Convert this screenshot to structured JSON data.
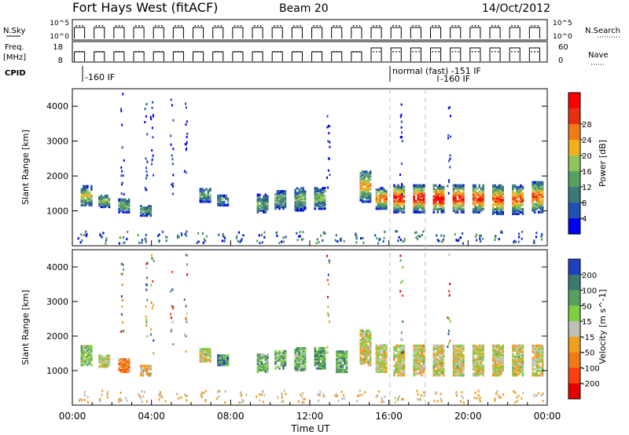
{
  "header": {
    "title": "Fort Hays West (fitACF)",
    "beam": "Beam 20",
    "date": "14/Oct/2012"
  },
  "top_panels": {
    "nsky_label": "N.Sky",
    "nsky_ticks": [
      "10^5",
      "10^0"
    ],
    "nsearch_label": "N.Search",
    "freq_label_1": "Freq.",
    "freq_label_2": "[MHz]",
    "freq_ticks": [
      "18",
      "8"
    ],
    "nave_ticks": [
      "60",
      "0"
    ],
    "nave_label": "Nave",
    "cpid_label": "CPID",
    "cpid_annotations": [
      "-160 IF",
      "normal (fast) -151 IF",
      "-160 IF"
    ]
  },
  "chart_data": [
    {
      "type": "heatmap",
      "name": "power",
      "ylabel": "Slant Range [km]",
      "xlabel": "Time UT",
      "x_ticks": [
        "00:00",
        "04:00",
        "08:00",
        "12:00",
        "16:00",
        "20:00",
        "00:00"
      ],
      "y_ticks": [
        1000,
        2000,
        3000,
        4000
      ],
      "ylim": [
        0,
        4500
      ],
      "xlim_hours": [
        0,
        24
      ],
      "colorbar_label": "Power [dB]",
      "colorbar_ticks": [
        4,
        8,
        12,
        16,
        20,
        24,
        28
      ],
      "colors": [
        "#0000f0",
        "#2050b0",
        "#3c7a7a",
        "#58a060",
        "#8ec45a",
        "#f0b020",
        "#f07a18",
        "#e83010",
        "#ff0000"
      ],
      "echo_bursts": [
        {
          "t": 0.7,
          "r0": 1200,
          "r1": 1750,
          "peak": 0.5
        },
        {
          "t": 1.6,
          "r0": 1150,
          "r1": 1500,
          "peak": 0.4
        },
        {
          "t": 2.6,
          "r0": 1000,
          "r1": 1400,
          "peak": 0.35
        },
        {
          "t": 3.7,
          "r0": 900,
          "r1": 1200,
          "peak": 0.3
        },
        {
          "t": 6.7,
          "r0": 1300,
          "r1": 1700,
          "peak": 0.3
        },
        {
          "t": 7.6,
          "r0": 1200,
          "r1": 1500,
          "peak": 0.25
        },
        {
          "t": 9.6,
          "r0": 1000,
          "r1": 1500,
          "peak": 0.3
        },
        {
          "t": 10.5,
          "r0": 1100,
          "r1": 1600,
          "peak": 0.3
        },
        {
          "t": 11.5,
          "r0": 1050,
          "r1": 1700,
          "peak": 0.35
        },
        {
          "t": 12.5,
          "r0": 1100,
          "r1": 1700,
          "peak": 0.35
        },
        {
          "t": 14.8,
          "r0": 1300,
          "r1": 2200,
          "peak": 0.6
        },
        {
          "t": 15.6,
          "r0": 1100,
          "r1": 1700,
          "peak": 0.7
        },
        {
          "t": 16.5,
          "r0": 1000,
          "r1": 1800,
          "peak": 0.8
        },
        {
          "t": 17.5,
          "r0": 1000,
          "r1": 1800,
          "peak": 0.85
        },
        {
          "t": 18.5,
          "r0": 1000,
          "r1": 1800,
          "peak": 0.9
        },
        {
          "t": 19.5,
          "r0": 1000,
          "r1": 1800,
          "peak": 0.85
        },
        {
          "t": 20.5,
          "r0": 1000,
          "r1": 1800,
          "peak": 0.8
        },
        {
          "t": 21.5,
          "r0": 950,
          "r1": 1800,
          "peak": 0.75
        },
        {
          "t": 22.5,
          "r0": 950,
          "r1": 1800,
          "peak": 0.7
        },
        {
          "t": 23.5,
          "r0": 1000,
          "r1": 1900,
          "peak": 0.7
        }
      ]
    },
    {
      "type": "heatmap",
      "name": "velocity",
      "ylabel": "Slant Range [km]",
      "xlabel": "Time UT",
      "x_ticks": [
        "00:00",
        "04:00",
        "08:00",
        "12:00",
        "16:00",
        "20:00",
        "00:00"
      ],
      "y_ticks": [
        1000,
        2000,
        3000,
        4000
      ],
      "ylim": [
        0,
        4500
      ],
      "xlim_hours": [
        0,
        24
      ],
      "colorbar_label": "Velocity [m s^-1]",
      "colorbar_ticks": [
        200,
        100,
        50,
        15,
        -15,
        -50,
        -100,
        -200
      ],
      "colors": [
        "#2040c0",
        "#3a7a70",
        "#58a060",
        "#7cd040",
        "#c0c0b8",
        "#f0a020",
        "#f07a18",
        "#ff4010",
        "#e80000"
      ],
      "echo_bursts": [
        {
          "t": 0.7,
          "r0": 1200,
          "r1": 1750,
          "v": 0.4
        },
        {
          "t": 1.6,
          "r0": 1150,
          "r1": 1500,
          "v": 0.5
        },
        {
          "t": 2.6,
          "r0": 1000,
          "r1": 1400,
          "v": 0.7
        },
        {
          "t": 3.7,
          "r0": 900,
          "r1": 1200,
          "v": 0.6
        },
        {
          "t": 6.7,
          "r0": 1300,
          "r1": 1700,
          "v": 0.5
        },
        {
          "t": 7.6,
          "r0": 1200,
          "r1": 1500,
          "v": 0.2
        },
        {
          "t": 9.6,
          "r0": 1000,
          "r1": 1500,
          "v": 0.35
        },
        {
          "t": 10.5,
          "r0": 1100,
          "r1": 1600,
          "v": 0.3
        },
        {
          "t": 11.5,
          "r0": 1050,
          "r1": 1700,
          "v": 0.35
        },
        {
          "t": 12.5,
          "r0": 1100,
          "r1": 1700,
          "v": 0.3
        },
        {
          "t": 13.6,
          "r0": 1000,
          "r1": 1600,
          "v": 0.3
        },
        {
          "t": 14.8,
          "r0": 1200,
          "r1": 2200,
          "v": 0.5
        },
        {
          "t": 15.6,
          "r0": 1000,
          "r1": 1800,
          "v": 0.5
        },
        {
          "t": 16.5,
          "r0": 900,
          "r1": 1800,
          "v": 0.5
        },
        {
          "t": 17.5,
          "r0": 900,
          "r1": 1800,
          "v": 0.5
        },
        {
          "t": 18.5,
          "r0": 900,
          "r1": 1800,
          "v": 0.5
        },
        {
          "t": 19.5,
          "r0": 900,
          "r1": 1800,
          "v": 0.5
        },
        {
          "t": 20.5,
          "r0": 900,
          "r1": 1800,
          "v": 0.5
        },
        {
          "t": 21.5,
          "r0": 900,
          "r1": 1800,
          "v": 0.5
        },
        {
          "t": 22.5,
          "r0": 900,
          "r1": 1800,
          "v": 0.5
        },
        {
          "t": 23.5,
          "r0": 900,
          "r1": 1800,
          "v": 0.5
        }
      ]
    }
  ]
}
